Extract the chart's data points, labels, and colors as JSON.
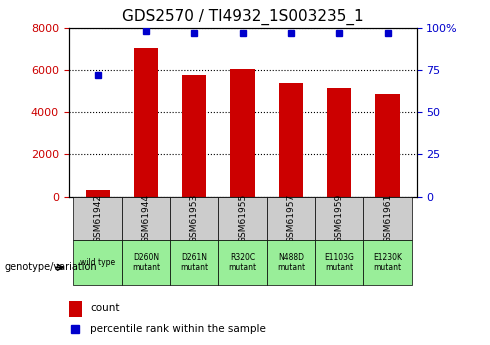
{
  "title": "GDS2570 / TI4932_1S003235_1",
  "categories": [
    "GSM61942",
    "GSM61944",
    "GSM61953",
    "GSM61955",
    "GSM61957",
    "GSM61959",
    "GSM61961"
  ],
  "genotype_labels": [
    "wild type",
    "D260N\nmutant",
    "D261N\nmutant",
    "R320C\nmutant",
    "N488D\nmutant",
    "E1103G\nmutant",
    "E1230K\nmutant"
  ],
  "counts": [
    320,
    7050,
    5750,
    6020,
    5380,
    5120,
    4870
  ],
  "percentile_ranks": [
    72,
    98,
    97,
    97,
    97,
    97,
    97
  ],
  "bar_color": "#cc0000",
  "dot_color": "#0000cc",
  "ylim_left": [
    0,
    8000
  ],
  "ylim_right": [
    0,
    100
  ],
  "yticks_left": [
    0,
    2000,
    4000,
    6000,
    8000
  ],
  "yticks_right": [
    0,
    25,
    50,
    75,
    100
  ],
  "yticklabels_right": [
    "0",
    "25",
    "50",
    "75",
    "100%"
  ],
  "title_fontsize": 11,
  "axis_label_color_left": "#cc0000",
  "axis_label_color_right": "#0000cc",
  "legend_count_label": "count",
  "legend_pct_label": "percentile rank within the sample",
  "genotype_arrow_label": "genotype/variation",
  "bg_color_gsm": "#cccccc",
  "bg_color_geno": "#99ee99"
}
